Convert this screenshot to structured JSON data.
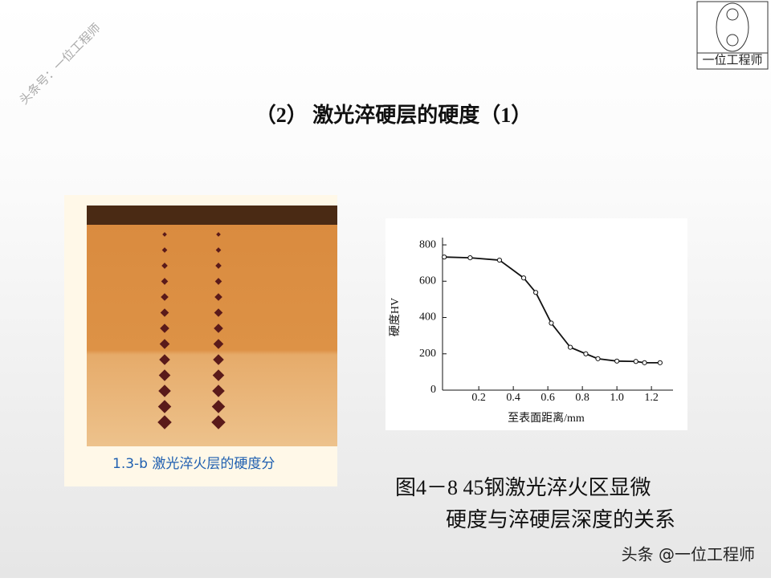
{
  "watermark": "头条号：一位工程师",
  "logo": {
    "text": "一位工程师"
  },
  "slide_title": "（2） 激光淬硬层的硬度（1）",
  "photo": {
    "caption": "1.3-b 激光淬火层的硬度分"
  },
  "chart_data": {
    "type": "line",
    "x": [
      0,
      0.15,
      0.32,
      0.46,
      0.53,
      0.62,
      0.73,
      0.82,
      0.89,
      1.0,
      1.11,
      1.16,
      1.25
    ],
    "series": [
      {
        "color": "#111111",
        "values": [
          733,
          729,
          716,
          618,
          538,
          369,
          236,
          200,
          173,
          160,
          158,
          151,
          151
        ]
      }
    ],
    "xlim": [
      -0.01,
      1.325
    ],
    "ylim": [
      0,
      840
    ],
    "xticks": [
      0.2,
      0.4,
      0.6,
      0.8,
      {
        "value": 1,
        "label": "1.0"
      },
      1.2
    ],
    "yticks": [
      0,
      200,
      400,
      600,
      800
    ],
    "xlabel": "至表面距离/mm",
    "ylabel": "硬度HV"
  },
  "figure_caption": {
    "line1": "图4－8 45钢激光淬火区显微",
    "line2": "硬度与淬硬层深度的关系"
  },
  "footer": "头条 @一位工程师"
}
